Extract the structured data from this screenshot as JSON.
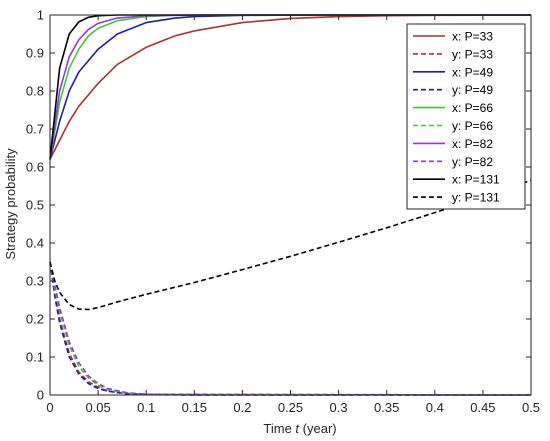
{
  "chart_data": {
    "type": "line",
    "xlabel_prefix": "Time",
    "xlabel_var": "t",
    "xlabel_suffix": "(year)",
    "ylabel": "Strategy probability",
    "xlim": [
      0,
      0.5
    ],
    "ylim": [
      0,
      1
    ],
    "xticks": [
      "0",
      "0.05",
      "0.1",
      "0.15",
      "0.2",
      "0.25",
      "0.3",
      "0.35",
      "0.4",
      "0.45",
      "0.5"
    ],
    "yticks": [
      "0",
      "0.1",
      "0.2",
      "0.3",
      "0.4",
      "0.5",
      "0.6",
      "0.7",
      "0.8",
      "0.9",
      "1"
    ],
    "grid": false,
    "legend_position": "top-right",
    "series": [
      {
        "name": "x: P=33",
        "color": "#b0302e",
        "dash": "solid",
        "x": [
          0,
          0.01,
          0.02,
          0.03,
          0.05,
          0.07,
          0.1,
          0.13,
          0.15,
          0.2,
          0.25,
          0.3,
          0.35,
          0.4,
          0.5
        ],
        "y": [
          0.62,
          0.67,
          0.72,
          0.76,
          0.82,
          0.87,
          0.915,
          0.945,
          0.958,
          0.98,
          0.991,
          0.996,
          0.998,
          0.999,
          1.0
        ]
      },
      {
        "name": "y: P=33",
        "color": "#b0302e",
        "dash": "dashed",
        "x": [
          0,
          0.005,
          0.01,
          0.02,
          0.03,
          0.04,
          0.05,
          0.06,
          0.08,
          0.1,
          0.15,
          0.2,
          0.5
        ],
        "y": [
          0.35,
          0.27,
          0.2,
          0.11,
          0.06,
          0.035,
          0.02,
          0.01,
          0.004,
          0.002,
          0.0,
          0.0,
          0.0
        ]
      },
      {
        "name": "x: P=49",
        "color": "#1f1fa6",
        "dash": "solid",
        "x": [
          0,
          0.01,
          0.02,
          0.03,
          0.05,
          0.07,
          0.1,
          0.13,
          0.15,
          0.2,
          0.3,
          0.5
        ],
        "y": [
          0.62,
          0.72,
          0.8,
          0.85,
          0.91,
          0.95,
          0.98,
          0.992,
          0.996,
          0.999,
          1.0,
          1.0
        ]
      },
      {
        "name": "y: P=49",
        "color": "#1f1fa6",
        "dash": "dashed",
        "x": [
          0,
          0.005,
          0.01,
          0.02,
          0.03,
          0.04,
          0.05,
          0.06,
          0.08,
          0.1,
          0.15,
          0.5
        ],
        "y": [
          0.35,
          0.26,
          0.19,
          0.1,
          0.055,
          0.03,
          0.017,
          0.01,
          0.003,
          0.001,
          0.0,
          0.0
        ]
      },
      {
        "name": "x: P=66",
        "color": "#3fcc28",
        "dash": "solid",
        "x": [
          0,
          0.01,
          0.02,
          0.03,
          0.04,
          0.05,
          0.07,
          0.1,
          0.13,
          0.2,
          0.5
        ],
        "y": [
          0.62,
          0.77,
          0.86,
          0.91,
          0.945,
          0.965,
          0.985,
          0.996,
          0.999,
          1.0,
          1.0
        ]
      },
      {
        "name": "y: P=66",
        "color": "#3fcc28",
        "dash": "dashed",
        "x": [
          0,
          0.005,
          0.01,
          0.02,
          0.03,
          0.04,
          0.05,
          0.06,
          0.08,
          0.1,
          0.5
        ],
        "y": [
          0.35,
          0.28,
          0.22,
          0.13,
          0.075,
          0.045,
          0.025,
          0.014,
          0.005,
          0.002,
          0.0
        ]
      },
      {
        "name": "x: P=82",
        "color": "#9933ee",
        "dash": "solid",
        "x": [
          0,
          0.01,
          0.02,
          0.03,
          0.04,
          0.05,
          0.07,
          0.1,
          0.15,
          0.5
        ],
        "y": [
          0.62,
          0.8,
          0.89,
          0.935,
          0.962,
          0.978,
          0.992,
          0.998,
          1.0,
          1.0
        ]
      },
      {
        "name": "y: P=82",
        "color": "#9933ee",
        "dash": "dashed",
        "x": [
          0,
          0.005,
          0.01,
          0.02,
          0.03,
          0.04,
          0.05,
          0.06,
          0.08,
          0.1,
          0.5
        ],
        "y": [
          0.35,
          0.29,
          0.23,
          0.14,
          0.085,
          0.05,
          0.03,
          0.017,
          0.006,
          0.002,
          0.0
        ]
      },
      {
        "name": "x: P=131",
        "color": "#000000",
        "dash": "solid",
        "x": [
          0,
          0.01,
          0.02,
          0.03,
          0.04,
          0.05,
          0.07,
          0.1,
          0.5
        ],
        "y": [
          0.62,
          0.86,
          0.95,
          0.982,
          0.994,
          0.998,
          1.0,
          1.0,
          1.0
        ]
      },
      {
        "name": "y: P=131",
        "color": "#000000",
        "dash": "dashed",
        "x": [
          0,
          0.005,
          0.01,
          0.02,
          0.03,
          0.04,
          0.05,
          0.07,
          0.1,
          0.15,
          0.2,
          0.25,
          0.3,
          0.35,
          0.4,
          0.45,
          0.5
        ],
        "y": [
          0.35,
          0.3,
          0.27,
          0.238,
          0.226,
          0.225,
          0.23,
          0.245,
          0.265,
          0.296,
          0.33,
          0.365,
          0.402,
          0.44,
          0.48,
          0.52,
          0.565
        ]
      }
    ]
  }
}
